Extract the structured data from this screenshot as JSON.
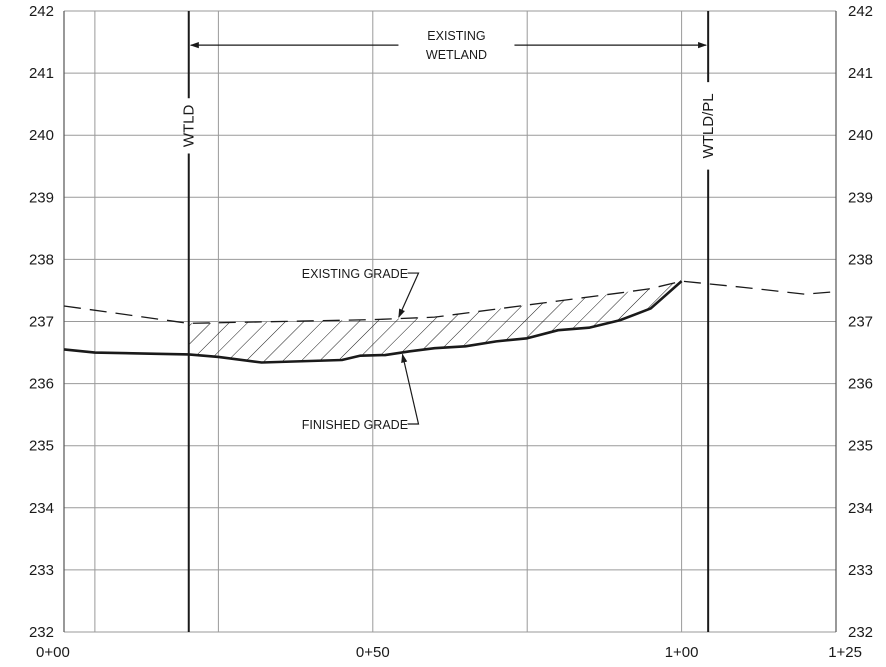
{
  "chart_data": {
    "type": "line",
    "xlim": [
      0,
      125
    ],
    "ylim": [
      232,
      242
    ],
    "x_grid": [
      0,
      5,
      25,
      50,
      75,
      100,
      125
    ],
    "y_ticks": [
      {
        "value": 232,
        "label": "232"
      },
      {
        "value": 233,
        "label": "233"
      },
      {
        "value": 234,
        "label": "234"
      },
      {
        "value": 235,
        "label": "235"
      },
      {
        "value": 236,
        "label": "236"
      },
      {
        "value": 237,
        "label": "237"
      },
      {
        "value": 238,
        "label": "238"
      },
      {
        "value": 239,
        "label": "239"
      },
      {
        "value": 240,
        "label": "240"
      },
      {
        "value": 241,
        "label": "241"
      },
      {
        "value": 242,
        "label": "242"
      }
    ],
    "x_ticks": [
      {
        "value": 0,
        "label": "0+00"
      },
      {
        "value": 50,
        "label": "0+50"
      },
      {
        "value": 100,
        "label": "1+00"
      },
      {
        "value": 125,
        "label": "1+25"
      }
    ],
    "vertical_lines": [
      {
        "x": 20.2,
        "label": "WTLD"
      },
      {
        "x": 104.3,
        "label": "WTLD/PL"
      }
    ],
    "span_annotation": {
      "x_from": 20.2,
      "x_to": 104.3,
      "y": 241.45,
      "lines": [
        "EXISTING",
        "WETLAND"
      ]
    },
    "series": [
      {
        "key": "existing",
        "style": "dashed",
        "x": [
          0,
          20.2,
          50,
          60,
          70,
          80,
          90,
          95,
          100,
          110,
          120,
          125
        ],
        "y": [
          237.25,
          236.97,
          237.03,
          237.07,
          237.2,
          237.33,
          237.46,
          237.53,
          237.65,
          237.55,
          237.44,
          237.48
        ]
      },
      {
        "key": "finished",
        "style": "solid",
        "x": [
          0,
          5,
          15,
          20.2,
          25,
          32,
          45,
          48,
          52,
          56,
          60,
          65,
          70,
          75,
          80,
          85,
          90,
          95,
          100
        ],
        "y": [
          236.55,
          236.5,
          236.48,
          236.47,
          236.43,
          236.34,
          236.38,
          236.45,
          236.46,
          236.52,
          236.57,
          236.6,
          236.68,
          236.73,
          236.86,
          236.9,
          237.02,
          237.21,
          237.65
        ]
      }
    ],
    "annotations": [
      {
        "text": "EXISTING GRADE",
        "text_x": 38.5,
        "text_y": 237.78,
        "leader_to_x": 57.4,
        "leader_to_y": 237.78,
        "arrow_to_x": 54.2,
        "arrow_to_y": 237.07
      },
      {
        "text": "FINISHED GRADE",
        "text_x": 38.5,
        "text_y": 235.35,
        "leader_to_x": 57.4,
        "leader_to_y": 235.35,
        "arrow_to_x": 54.8,
        "arrow_to_y": 236.47
      }
    ],
    "hatched_region": {
      "between": [
        "existing",
        "finished"
      ],
      "x_from": 20.2,
      "x_to": 100
    },
    "colors": {
      "line": "#1a1a1a",
      "grid": "#9a9a9a",
      "hatch": "#1a1a1a"
    }
  }
}
